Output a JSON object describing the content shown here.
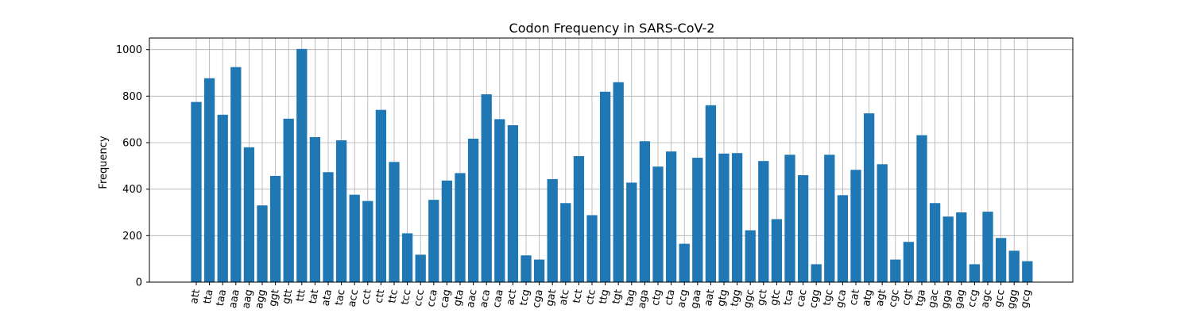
{
  "chart_data": {
    "type": "bar",
    "title": "Codon Frequency in SARS-CoV-2",
    "xlabel": "",
    "ylabel": "Frequency",
    "ylim": [
      0,
      1050
    ],
    "yticks": [
      0,
      200,
      400,
      600,
      800,
      1000
    ],
    "grid": true,
    "bar_color": "#1f77b4",
    "categories": [
      "att",
      "tta",
      "taa",
      "aaa",
      "aag",
      "agg",
      "ggt",
      "gtt",
      "ttt",
      "tat",
      "ata",
      "tac",
      "acc",
      "cct",
      "ctt",
      "ttc",
      "tcc",
      "ccc",
      "cca",
      "cag",
      "gta",
      "aac",
      "aca",
      "caa",
      "act",
      "tcg",
      "cga",
      "gat",
      "atc",
      "tct",
      "ctc",
      "ttg",
      "tgt",
      "tag",
      "aga",
      "ctg",
      "cta",
      "acg",
      "gaa",
      "aat",
      "gtg",
      "tgg",
      "ggc",
      "gct",
      "gtc",
      "tca",
      "cac",
      "cgg",
      "tgc",
      "gca",
      "cat",
      "atg",
      "agt",
      "cgc",
      "cgt",
      "tga",
      "gac",
      "gga",
      "gag",
      "ccg",
      "agc",
      "gcc",
      "ggg",
      "gcg"
    ],
    "values": [
      775,
      877,
      720,
      925,
      580,
      330,
      457,
      703,
      1003,
      624,
      473,
      610,
      376,
      349,
      741,
      517,
      210,
      118,
      354,
      437,
      469,
      617,
      808,
      701,
      675,
      115,
      97,
      443,
      340,
      542,
      288,
      819,
      860,
      428,
      606,
      497,
      562,
      165,
      535,
      761,
      553,
      555,
      223,
      521,
      271,
      548,
      460,
      77,
      548,
      374,
      483,
      726,
      507,
      97,
      173,
      632,
      340,
      282,
      300,
      77,
      303,
      190,
      135,
      90
    ]
  }
}
